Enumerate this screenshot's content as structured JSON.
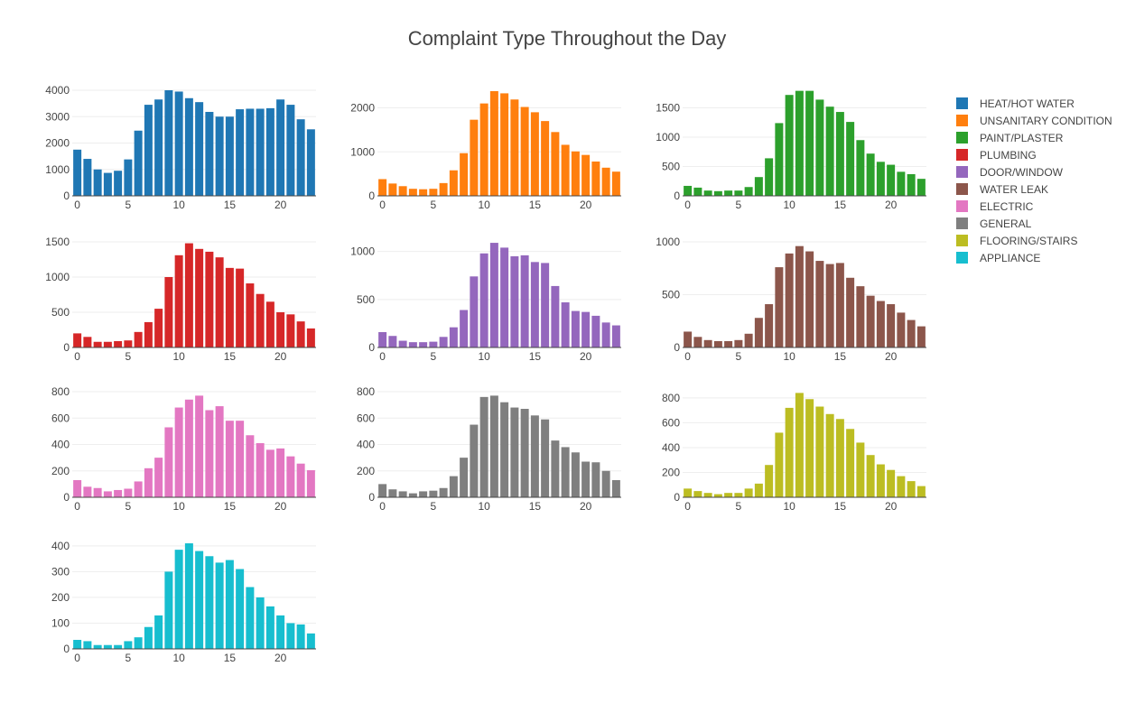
{
  "chart_data": {
    "type": "bar",
    "title": "Complaint Type Throughout the Day",
    "x": [
      0,
      1,
      2,
      3,
      4,
      5,
      6,
      7,
      8,
      9,
      10,
      11,
      12,
      13,
      14,
      15,
      16,
      17,
      18,
      19,
      20,
      21,
      22,
      23
    ],
    "legend_position": "right",
    "grid": true,
    "panels": [
      {
        "name": "HEAT/HOT WATER",
        "color": "#1f77b4",
        "ylim": [
          0,
          4000
        ],
        "yticks": [
          0,
          1000,
          2000,
          3000,
          4000
        ],
        "values": [
          1750,
          1400,
          1000,
          870,
          950,
          1380,
          2470,
          3450,
          3650,
          4000,
          3950,
          3700,
          3550,
          3180,
          3000,
          3000,
          3280,
          3300,
          3300,
          3320,
          3650,
          3450,
          2900,
          2520
        ]
      },
      {
        "name": "UNSANITARY CONDITION",
        "color": "#ff7f0e",
        "ylim": [
          0,
          2400
        ],
        "yticks": [
          0,
          1000,
          2000
        ],
        "values": [
          380,
          280,
          220,
          160,
          150,
          160,
          290,
          580,
          970,
          1730,
          2100,
          2380,
          2330,
          2190,
          2020,
          1900,
          1700,
          1450,
          1160,
          1010,
          930,
          780,
          640,
          550
        ]
      },
      {
        "name": "PAINT/PLASTER",
        "color": "#2ca02c",
        "ylim": [
          0,
          1800
        ],
        "yticks": [
          0,
          500,
          1000,
          1500
        ],
        "values": [
          170,
          140,
          90,
          80,
          90,
          90,
          150,
          320,
          640,
          1240,
          1720,
          1790,
          1790,
          1640,
          1520,
          1430,
          1260,
          950,
          720,
          580,
          530,
          410,
          370,
          290
        ]
      },
      {
        "name": "PLUMBING",
        "color": "#d62728",
        "ylim": [
          0,
          1500
        ],
        "yticks": [
          0,
          500,
          1000,
          1500
        ],
        "values": [
          200,
          150,
          80,
          80,
          90,
          100,
          220,
          360,
          550,
          1000,
          1310,
          1480,
          1400,
          1360,
          1280,
          1130,
          1120,
          910,
          760,
          650,
          500,
          470,
          370,
          270
        ]
      },
      {
        "name": "DOOR/WINDOW",
        "color": "#9467bd",
        "ylim": [
          0,
          1100
        ],
        "yticks": [
          0,
          500,
          1000
        ],
        "values": [
          160,
          120,
          70,
          55,
          55,
          60,
          110,
          210,
          390,
          740,
          980,
          1090,
          1040,
          950,
          960,
          890,
          880,
          640,
          470,
          380,
          370,
          330,
          260,
          230
        ]
      },
      {
        "name": "WATER LEAK",
        "color": "#8c564b",
        "ylim": [
          0,
          1000
        ],
        "yticks": [
          0,
          500,
          1000
        ],
        "values": [
          150,
          100,
          70,
          60,
          60,
          70,
          130,
          280,
          410,
          760,
          890,
          960,
          910,
          820,
          790,
          800,
          660,
          580,
          490,
          440,
          410,
          330,
          260,
          200
        ]
      },
      {
        "name": "ELECTRIC",
        "color": "#e377c2",
        "ylim": [
          0,
          800
        ],
        "yticks": [
          0,
          200,
          400,
          600,
          800
        ],
        "values": [
          130,
          80,
          70,
          45,
          55,
          65,
          120,
          220,
          300,
          530,
          680,
          740,
          770,
          660,
          690,
          580,
          580,
          470,
          410,
          360,
          370,
          310,
          255,
          205
        ]
      },
      {
        "name": "GENERAL",
        "color": "#7f7f7f",
        "ylim": [
          0,
          800
        ],
        "yticks": [
          0,
          200,
          400,
          600,
          800
        ],
        "values": [
          100,
          60,
          45,
          30,
          45,
          50,
          70,
          160,
          300,
          550,
          760,
          770,
          720,
          680,
          670,
          620,
          590,
          430,
          380,
          340,
          270,
          265,
          200,
          130
        ]
      },
      {
        "name": "FLOORING/STAIRS",
        "color": "#bcbd22",
        "ylim": [
          0,
          850
        ],
        "yticks": [
          0,
          200,
          400,
          600,
          800
        ],
        "values": [
          70,
          50,
          35,
          25,
          35,
          35,
          70,
          110,
          260,
          520,
          720,
          840,
          790,
          730,
          670,
          630,
          550,
          440,
          340,
          265,
          220,
          170,
          130,
          90
        ]
      },
      {
        "name": "APPLIANCE",
        "color": "#17becf",
        "ylim": [
          0,
          410
        ],
        "yticks": [
          0,
          100,
          200,
          300,
          400
        ],
        "values": [
          35,
          30,
          15,
          15,
          15,
          30,
          45,
          85,
          130,
          300,
          385,
          410,
          380,
          360,
          335,
          345,
          310,
          240,
          200,
          165,
          130,
          100,
          95,
          60
        ]
      }
    ],
    "xticks": [
      0,
      5,
      10,
      15,
      20
    ]
  }
}
